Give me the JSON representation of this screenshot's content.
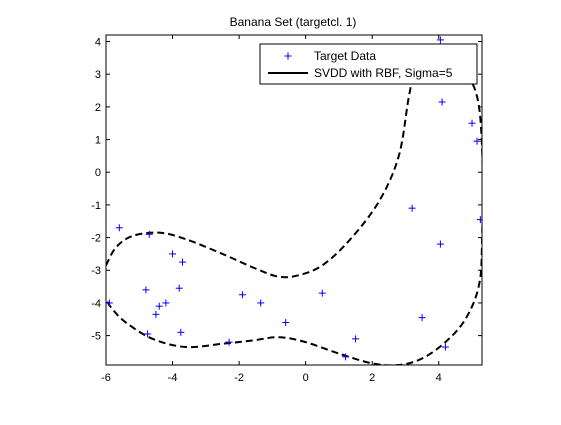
{
  "chart_data": {
    "type": "scatter",
    "title": "Banana Set (targetcl. 1)",
    "xlabel": "",
    "ylabel": "",
    "xlim": [
      -6,
      5.3
    ],
    "ylim": [
      -5.9,
      4.2
    ],
    "xticks": [
      -6,
      -4,
      -2,
      0,
      2,
      4
    ],
    "yticks": [
      4,
      3,
      2,
      1,
      0,
      -1,
      -2,
      -3,
      -4,
      -5
    ],
    "grid": false,
    "legend_position": "top-right",
    "legend": [
      {
        "label": "Target Data",
        "marker": "+",
        "color": "#0000ff"
      },
      {
        "label": "SVDD with RBF, Sigma=5",
        "line": "solid",
        "color": "#000000"
      }
    ],
    "series": [
      {
        "name": "Target Data",
        "type": "scatter",
        "marker": "+",
        "color": "#0000ff",
        "points": [
          [
            -5.6,
            -1.7
          ],
          [
            -4.7,
            -1.9
          ],
          [
            -4.0,
            -2.5
          ],
          [
            -3.7,
            -2.75
          ],
          [
            -5.9,
            -4.0
          ],
          [
            -4.8,
            -3.6
          ],
          [
            -4.5,
            -4.35
          ],
          [
            -4.4,
            -4.1
          ],
          [
            -4.2,
            -4.0
          ],
          [
            -3.8,
            -3.55
          ],
          [
            -4.75,
            -4.95
          ],
          [
            -3.75,
            -4.9
          ],
          [
            -2.3,
            -5.2
          ],
          [
            -1.9,
            -3.75
          ],
          [
            -1.35,
            -4.0
          ],
          [
            -0.6,
            -4.6
          ],
          [
            0.5,
            -3.7
          ],
          [
            1.5,
            -5.1
          ],
          [
            1.2,
            -5.65
          ],
          [
            3.5,
            -4.45
          ],
          [
            3.2,
            -1.1
          ],
          [
            4.05,
            -2.2
          ],
          [
            4.2,
            -5.35
          ],
          [
            4.05,
            4.05
          ],
          [
            4.1,
            2.15
          ],
          [
            5.0,
            1.5
          ],
          [
            5.15,
            0.95
          ],
          [
            5.25,
            -1.45
          ]
        ]
      },
      {
        "name": "SVDD with RBF, Sigma=5",
        "type": "line",
        "style": "dashed",
        "color": "#000000",
        "points": [
          [
            -6.0,
            -2.85
          ],
          [
            -5.7,
            -2.3
          ],
          [
            -5.2,
            -1.95
          ],
          [
            -4.4,
            -1.85
          ],
          [
            -3.6,
            -2.05
          ],
          [
            -2.5,
            -2.5
          ],
          [
            -1.5,
            -2.95
          ],
          [
            -0.8,
            -3.2
          ],
          [
            -0.2,
            -3.15
          ],
          [
            0.5,
            -2.85
          ],
          [
            1.3,
            -2.1
          ],
          [
            2.2,
            -0.9
          ],
          [
            2.8,
            0.5
          ],
          [
            3.1,
            2.3
          ],
          [
            3.3,
            3.1
          ],
          [
            3.75,
            3.55
          ],
          [
            4.5,
            3.3
          ],
          [
            5.1,
            2.5
          ],
          [
            5.3,
            0.8
          ],
          [
            5.3,
            -2.2
          ],
          [
            5.2,
            -3.5
          ],
          [
            4.8,
            -4.5
          ],
          [
            4.2,
            -5.2
          ],
          [
            3.5,
            -5.7
          ],
          [
            2.8,
            -5.9
          ],
          [
            2.0,
            -5.85
          ],
          [
            1.0,
            -5.55
          ],
          [
            0.0,
            -5.2
          ],
          [
            -0.8,
            -5.05
          ],
          [
            -1.6,
            -5.15
          ],
          [
            -2.5,
            -5.25
          ],
          [
            -3.6,
            -5.35
          ],
          [
            -4.6,
            -5.1
          ],
          [
            -5.4,
            -4.6
          ],
          [
            -5.8,
            -4.2
          ],
          [
            -6.0,
            -3.9
          ]
        ]
      }
    ]
  }
}
